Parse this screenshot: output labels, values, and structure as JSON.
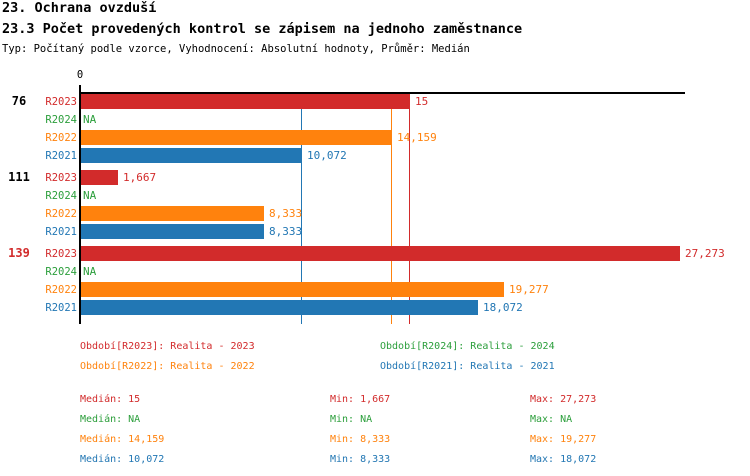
{
  "header": {
    "title1": "23. Ochrana ovzduší",
    "title2": "23.3 Počet provedených kontrol se zápisem na jednoho zaměstnance",
    "subtitle": "Typ: Počítaný podle vzorce, Vyhodnocení: Absolutní hodnoty, Průměr: Medián"
  },
  "colors": {
    "R2023": "#d22b2b",
    "R2024": "#2b9e3b",
    "R2022": "#ff820d",
    "R2021": "#2277b4",
    "axis": "#000000",
    "highlight_group": "#d22b2b",
    "normal_group": "#000000"
  },
  "chart_data": {
    "type": "bar",
    "orientation": "horizontal",
    "title": "23.3 Počet provedených kontrol se zápisem na jednoho zaměstnance",
    "axis": {
      "min": 0,
      "tick_labels": [
        "0"
      ],
      "implied_max": 27.5,
      "grid": false
    },
    "series_legend_position": "bottom",
    "groups": [
      {
        "label": "76",
        "highlight": false,
        "bars": [
          {
            "series": "R2023",
            "value": 15,
            "display": "15"
          },
          {
            "series": "R2024",
            "value": null,
            "display": "NA"
          },
          {
            "series": "R2022",
            "value": 14.159,
            "display": "14,159"
          },
          {
            "series": "R2021",
            "value": 10.072,
            "display": "10,072"
          }
        ]
      },
      {
        "label": "111",
        "highlight": false,
        "bars": [
          {
            "series": "R2023",
            "value": 1.667,
            "display": "1,667"
          },
          {
            "series": "R2024",
            "value": null,
            "display": "NA"
          },
          {
            "series": "R2022",
            "value": 8.333,
            "display": "8,333"
          },
          {
            "series": "R2021",
            "value": 8.333,
            "display": "8,333"
          }
        ]
      },
      {
        "label": "139",
        "highlight": true,
        "bars": [
          {
            "series": "R2023",
            "value": 27.273,
            "display": "27,273"
          },
          {
            "series": "R2024",
            "value": null,
            "display": "NA"
          },
          {
            "series": "R2022",
            "value": 19.277,
            "display": "19,277"
          },
          {
            "series": "R2021",
            "value": 18.072,
            "display": "18,072"
          }
        ]
      }
    ],
    "median_lines": [
      {
        "series": "R2023",
        "value": 15
      },
      {
        "series": "R2022",
        "value": 14.159
      },
      {
        "series": "R2021",
        "value": 10.072
      }
    ]
  },
  "legend": {
    "columns": [
      {
        "items": [
          {
            "series": "R2023",
            "label": "Období[R2023]: Realita - 2023"
          },
          {
            "series": "R2022",
            "label": "Období[R2022]: Realita - 2022"
          }
        ]
      },
      {
        "items": [
          {
            "series": "R2024",
            "label": "Období[R2024]: Realita - 2024"
          },
          {
            "series": "R2021",
            "label": "Období[R2021]: Realita - 2021"
          }
        ]
      }
    ]
  },
  "stats": {
    "rows": [
      {
        "series": "R2023",
        "cells": [
          "Medián: 15",
          "Min: 1,667",
          "Max: 27,273"
        ]
      },
      {
        "series": "R2024",
        "cells": [
          "Medián: NA",
          "Min: NA",
          "Max: NA"
        ]
      },
      {
        "series": "R2022",
        "cells": [
          "Medián: 14,159",
          "Min: 8,333",
          "Max: 19,277"
        ]
      },
      {
        "series": "R2021",
        "cells": [
          "Medián: 10,072",
          "Min: 8,333",
          "Max: 18,072"
        ]
      }
    ]
  }
}
